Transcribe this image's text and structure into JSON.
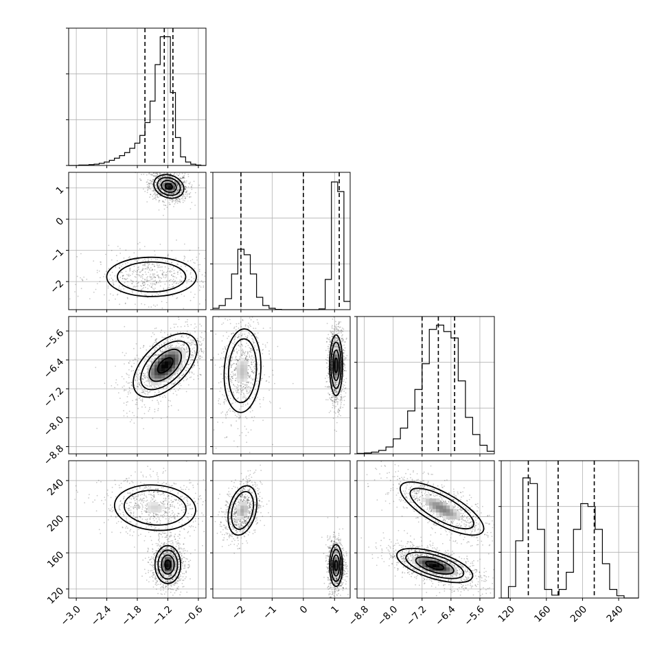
{
  "chart_data": {
    "type": "corner",
    "title": "",
    "params": [
      {
        "range": [
          -3.15,
          -0.45
        ],
        "ticks": [
          -3.0,
          -2.4,
          -1.8,
          -1.2,
          -0.6
        ],
        "tick_labels": [
          "−3.0",
          "−2.4",
          "−1.8",
          "−1.2",
          "−0.6"
        ]
      },
      {
        "range": [
          -2.9,
          1.5
        ],
        "ticks": [
          -2,
          -1,
          0,
          1
        ],
        "tick_labels": [
          "−2",
          "−1",
          "0",
          "1"
        ]
      },
      {
        "range": [
          -9.0,
          -5.2
        ],
        "ticks": [
          -8.8,
          -8.0,
          -7.2,
          -6.4,
          -5.6
        ],
        "tick_labels": [
          "−8.8",
          "−8.0",
          "−7.2",
          "−6.4",
          "−5.6"
        ]
      },
      {
        "range": [
          110,
          262
        ],
        "ticks": [
          120,
          160,
          200,
          240
        ],
        "tick_labels": [
          "120",
          "160",
          "200",
          "240"
        ]
      }
    ],
    "histograms": [
      {
        "param": 0,
        "bins": [
          -3.15,
          -3.05,
          -2.95,
          -2.85,
          -2.75,
          -2.65,
          -2.55,
          -2.45,
          -2.35,
          -2.25,
          -2.15,
          -2.05,
          -1.95,
          -1.85,
          -1.75,
          -1.65,
          -1.55,
          -1.45,
          -1.35,
          -1.25,
          -1.15,
          -1.05,
          -0.95,
          -0.85,
          -0.75,
          -0.65,
          -0.55,
          -0.45
        ],
        "counts": [
          0,
          0,
          1,
          1,
          2,
          3,
          5,
          8,
          12,
          17,
          23,
          30,
          40,
          52,
          70,
          100,
          150,
          235,
          300,
          300,
          170,
          65,
          20,
          8,
          3,
          1,
          0
        ],
        "ymax": 320,
        "quantiles": [
          -1.65,
          -1.27,
          -1.1
        ]
      },
      {
        "param": 1,
        "bins": [
          -2.9,
          -2.7,
          -2.5,
          -2.3,
          -2.1,
          -1.9,
          -1.7,
          -1.5,
          -1.3,
          -1.1,
          -0.9,
          -0.7,
          -0.5,
          -0.3,
          -0.1,
          0.1,
          0.3,
          0.5,
          0.7,
          0.9,
          1.1,
          1.3,
          1.5
        ],
        "counts": [
          5,
          15,
          40,
          130,
          220,
          200,
          130,
          45,
          15,
          5,
          1,
          0,
          0,
          0,
          0,
          0,
          0,
          3,
          110,
          465,
          430,
          30
        ],
        "ymax": 500,
        "quantiles": [
          -2.0,
          0.0,
          1.15
        ]
      },
      {
        "param": 2,
        "bins": [
          -9.0,
          -8.8,
          -8.6,
          -8.4,
          -8.2,
          -8.0,
          -7.8,
          -7.6,
          -7.4,
          -7.2,
          -7.0,
          -6.8,
          -6.6,
          -6.4,
          -6.2,
          -6.0,
          -5.8,
          -5.6,
          -5.4,
          -5.2
        ],
        "counts": [
          1,
          2,
          4,
          8,
          16,
          35,
          60,
          100,
          150,
          210,
          290,
          300,
          285,
          270,
          170,
          85,
          45,
          20,
          6
        ],
        "ymax": 320,
        "quantiles": [
          -7.2,
          -6.75,
          -6.3
        ]
      },
      {
        "param": 3,
        "bins": [
          110,
          118,
          126,
          134,
          142,
          150,
          158,
          166,
          174,
          182,
          190,
          198,
          206,
          214,
          222,
          230,
          238,
          246,
          254,
          262
        ],
        "counts": [
          0,
          20,
          100,
          210,
          200,
          120,
          15,
          5,
          15,
          45,
          120,
          165,
          160,
          120,
          60,
          15,
          4,
          0,
          0
        ],
        "ymax": 240,
        "quantiles": [
          140,
          173,
          213
        ]
      }
    ],
    "pairs": [
      {
        "x": 0,
        "y": 1,
        "modes": [
          {
            "cx": -1.18,
            "cy": 1.05,
            "sx": 0.14,
            "sy": 0.18,
            "rho": -0.2,
            "peak": 1.0
          },
          {
            "cx": -1.52,
            "cy": -1.85,
            "sx": 0.42,
            "sy": 0.3,
            "rho": 0.0,
            "peak": 0.33
          }
        ]
      },
      {
        "x": 0,
        "y": 2,
        "modes": [
          {
            "cx": -1.25,
            "cy": -6.55,
            "sx": 0.3,
            "sy": 0.42,
            "rho": 0.55,
            "peak": 1.0
          }
        ]
      },
      {
        "x": 1,
        "y": 2,
        "modes": [
          {
            "cx": -1.95,
            "cy": -6.7,
            "sx": 0.28,
            "sy": 0.55,
            "rho": 0.1,
            "peak": 0.55
          },
          {
            "cx": 1.05,
            "cy": -6.55,
            "sx": 0.1,
            "sy": 0.4,
            "rho": 0.0,
            "peak": 1.0
          }
        ]
      },
      {
        "x": 0,
        "y": 3,
        "modes": [
          {
            "cx": -1.45,
            "cy": 210,
            "sx": 0.38,
            "sy": 12,
            "rho": -0.1,
            "peak": 0.5
          },
          {
            "cx": -1.2,
            "cy": 147,
            "sx": 0.12,
            "sy": 10,
            "rho": 0.0,
            "peak": 1.0
          }
        ]
      },
      {
        "x": 1,
        "y": 3,
        "modes": [
          {
            "cx": -1.95,
            "cy": 207,
            "sx": 0.22,
            "sy": 13,
            "rho": 0.3,
            "peak": 0.6
          },
          {
            "cx": 1.05,
            "cy": 146,
            "sx": 0.1,
            "sy": 11,
            "rho": 0.0,
            "peak": 1.0
          }
        ]
      },
      {
        "x": 2,
        "y": 3,
        "modes": [
          {
            "cx": -6.65,
            "cy": 209,
            "sx": 0.55,
            "sy": 14,
            "rho": -0.75,
            "peak": 0.7
          },
          {
            "cx": -6.85,
            "cy": 146,
            "sx": 0.5,
            "sy": 9,
            "rho": -0.6,
            "peak": 1.0
          }
        ]
      }
    ]
  }
}
